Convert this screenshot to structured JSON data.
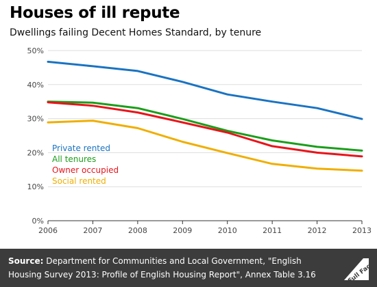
{
  "title": "Houses of ill repute",
  "subtitle": "Dwellings failing Decent Homes Standard, by tenure",
  "source": {
    "label": "Source:",
    "text": "Department for Communities and Local Government, \"English Housing Survey 2013: Profile of English Housing Report\", Annex Table 3.16"
  },
  "logo": {
    "icon": "full-fact-logo",
    "text": "Full Fact"
  },
  "chart_data": {
    "type": "line",
    "x": [
      "2006",
      "2007",
      "2008",
      "2009",
      "2010",
      "2011",
      "2012",
      "2013"
    ],
    "ylim": [
      0,
      50
    ],
    "yticks": [
      "0%",
      "10%",
      "20%",
      "30%",
      "40%",
      "50%"
    ],
    "grid": true,
    "legend_position": "left-middle",
    "series": [
      {
        "name": "Private rented",
        "color": "#1a73c2",
        "values": [
          46.7,
          45.4,
          44.0,
          40.8,
          37.1,
          35.0,
          33.1,
          29.9
        ]
      },
      {
        "name": "All tenures",
        "color": "#1a9e1a",
        "values": [
          35.0,
          34.7,
          33.1,
          29.9,
          26.4,
          23.6,
          21.7,
          20.6
        ]
      },
      {
        "name": "Owner occupied",
        "color": "#e8141a",
        "values": [
          34.8,
          33.8,
          31.8,
          28.9,
          25.9,
          21.9,
          20.0,
          18.9
        ]
      },
      {
        "name": "Social rented",
        "color": "#f0ae00",
        "values": [
          28.9,
          29.4,
          27.2,
          23.2,
          19.9,
          16.7,
          15.3,
          14.7
        ]
      }
    ]
  }
}
